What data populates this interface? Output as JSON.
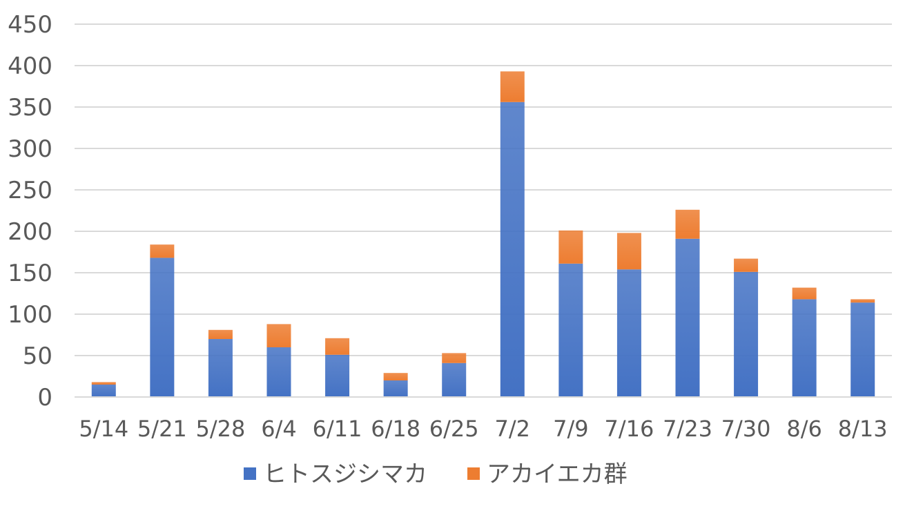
{
  "chart_data": {
    "type": "bar",
    "stacked": true,
    "title": "",
    "xlabel": "",
    "ylabel": "",
    "categories": [
      "5/14",
      "5/21",
      "5/28",
      "6/4",
      "6/11",
      "6/18",
      "6/25",
      "7/2",
      "7/9",
      "7/16",
      "7/23",
      "7/30",
      "8/6",
      "8/13"
    ],
    "series": [
      {
        "name": "ヒトスジシマカ",
        "color": "#4472C4",
        "values": [
          15,
          168,
          70,
          60,
          51,
          20,
          41,
          356,
          161,
          154,
          191,
          151,
          118,
          114
        ]
      },
      {
        "name": "アカイエカ群",
        "color": "#ED7D31",
        "values": [
          3,
          16,
          11,
          28,
          20,
          9,
          12,
          37,
          40,
          44,
          35,
          16,
          14,
          4
        ]
      }
    ],
    "ylim": [
      0,
      450
    ],
    "yticks": [
      0,
      50,
      100,
      150,
      200,
      250,
      300,
      350,
      400,
      450
    ],
    "grid": true,
    "legend_position": "bottom"
  }
}
